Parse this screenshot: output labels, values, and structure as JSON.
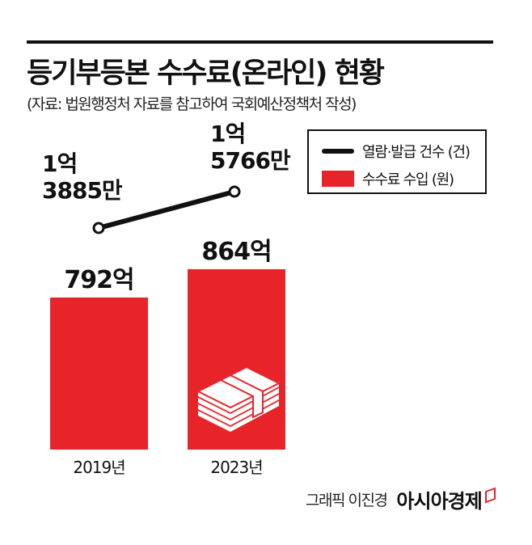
{
  "header": {
    "title": "등기부등본 수수료(온라인) 현황",
    "subtitle": "(자료: 법원행정처 자료를 참고하여 국회예산정책처 작성)"
  },
  "legend": [
    {
      "label": "열람·발급 건수 (건)",
      "icon": "line-marker"
    },
    {
      "label": "수수료 수입 (원)",
      "icon": "red-box"
    }
  ],
  "colors": {
    "bar": "#e8242b",
    "line": "#111111",
    "accent": "#e8242b"
  },
  "chart_data": {
    "type": "bar",
    "categories": [
      "2019년",
      "2023년"
    ],
    "series": [
      {
        "name": "수수료 수입 (원)",
        "type": "bar",
        "values": [
          792,
          864
        ],
        "unit": "억",
        "labels": [
          "792억",
          "864억"
        ]
      },
      {
        "name": "열람·발급 건수 (건)",
        "type": "line",
        "values": [
          138850000,
          157660000
        ],
        "labels": [
          [
            "1억",
            "3885만"
          ],
          [
            "1억",
            "5766만"
          ]
        ]
      }
    ]
  },
  "footer": {
    "credit": "그래픽 이진경",
    "brand": "아시아경제"
  }
}
